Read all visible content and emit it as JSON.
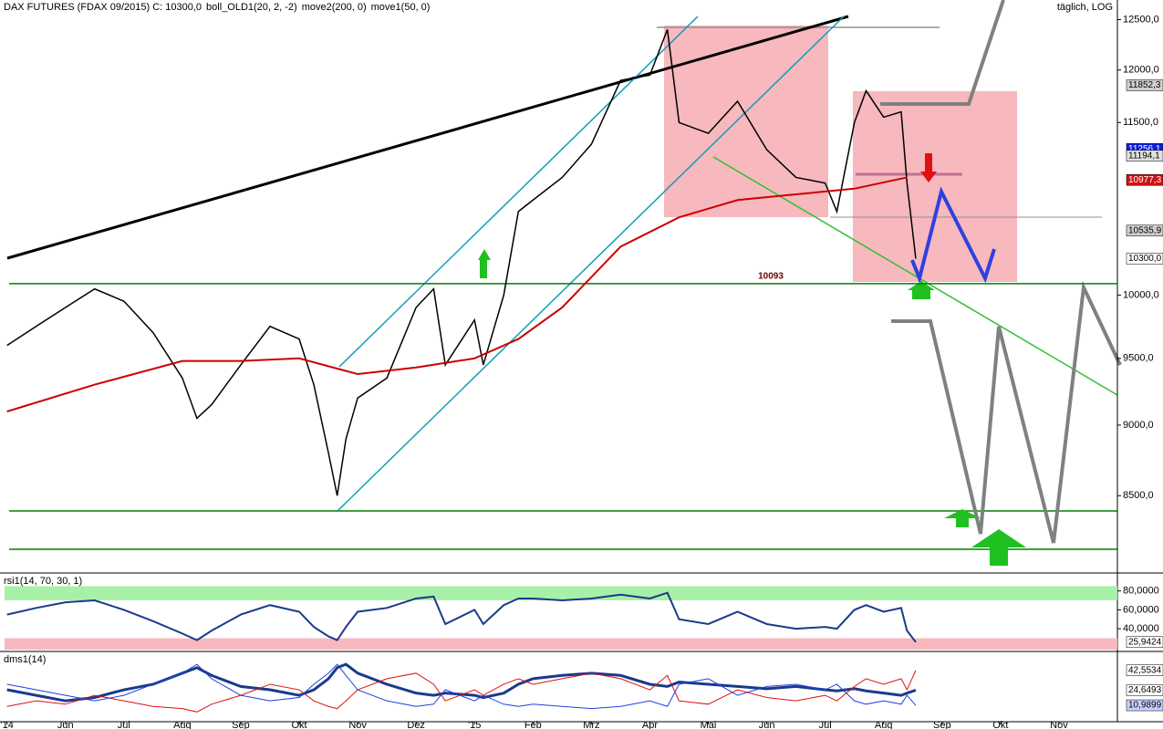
{
  "chart_data": [
    {
      "type": "line",
      "log_scale": true,
      "title_parts": [
        {
          "text": "DAX FUTURES (FDAX 09/2015) C: 10300,0",
          "color": "#000000"
        },
        {
          "text": "boll_OLD1(20, 2, -2)",
          "color": "#d08000"
        },
        {
          "text": "move2(200, 0)",
          "color": "#c00000"
        },
        {
          "text": "move1(50, 0)",
          "color": "#808080"
        }
      ],
      "period": "täglich, LOG",
      "xlim": [
        -0.12,
        19
      ],
      "ylim": [
        7990,
        12700
      ],
      "yticks": [
        {
          "value": 8500,
          "label": "8500,0"
        },
        {
          "value": 9000,
          "label": "9000,0"
        },
        {
          "value": 9500,
          "label": "9500,0"
        },
        {
          "value": 10000,
          "label": "10000,0"
        },
        {
          "value": 11500,
          "label": "11500,0"
        },
        {
          "value": 12000,
          "label": "12000,0"
        },
        {
          "value": 12500,
          "label": "12500,0"
        }
      ],
      "x": [
        0,
        0.5,
        1,
        1.5,
        2,
        2.5,
        3,
        3.25,
        3.5,
        4,
        4.5,
        5,
        5.25,
        5.5,
        5.65,
        5.8,
        6,
        6.5,
        7,
        7.3,
        7.5,
        8,
        8.15,
        8.5,
        8.75,
        9,
        9.5,
        10,
        10.5,
        11,
        11.3,
        11.5,
        12,
        12.5,
        13,
        13.5,
        14,
        14.2,
        14.5,
        14.7,
        15,
        15.3,
        15.4,
        15.55
      ],
      "series": [
        {
          "color": "#000000",
          "values": [
            9600,
            9750,
            9900,
            10050,
            9950,
            9700,
            9350,
            9050,
            9150,
            9450,
            9750,
            9650,
            9300,
            8800,
            8500,
            8900,
            9200,
            9350,
            9900,
            10050,
            9450,
            9800,
            9450,
            10000,
            10700,
            10800,
            11000,
            11300,
            11900,
            11950,
            12400,
            11500,
            11400,
            11700,
            11250,
            11000,
            10950,
            10700,
            11500,
            11800,
            11550,
            11600,
            10950,
            10300
          ]
        },
        {
          "color": "#cc0000",
          "x": [
            0,
            1.5,
            3,
            4,
            5,
            6,
            7,
            8,
            8.75,
            9.5,
            10.5,
            11.5,
            12.5,
            13.5,
            14.5,
            15.4
          ],
          "values": [
            9100,
            9300,
            9480,
            9480,
            9500,
            9380,
            9430,
            9500,
            9650,
            9900,
            10400,
            10650,
            10800,
            10850,
            10900,
            11000
          ]
        }
      ],
      "level": {
        "value": 10093,
        "label": "10093",
        "color": "#008000"
      },
      "tags": [
        {
          "value": 11852.3,
          "label": "11852,3",
          "bg": "#d0d0d0",
          "fg": "#000000"
        },
        {
          "value": 11256.1,
          "label": "11256,1",
          "bg": "#1020e0",
          "fg": "#ffffff"
        },
        {
          "value": 11194.1,
          "label": "11194,1",
          "bg": "#e0e0e0",
          "fg": "#000000"
        },
        {
          "value": 10977.3,
          "label": "10977,3",
          "bg": "#d01010",
          "fg": "#ffffff"
        },
        {
          "value": 10535.9,
          "label": "10535,9",
          "bg": "#d0d0d0",
          "fg": "#000000"
        },
        {
          "value": 10300.0,
          "label": "10300,0",
          "bg": "#ffffff",
          "fg": "#000000"
        }
      ]
    },
    {
      "type": "line",
      "title": "rsi1(14, 70, 30, 1)",
      "xlim": [
        -0.12,
        19
      ],
      "ylim": [
        18,
        97
      ],
      "yticks": [
        {
          "value": 40,
          "label": "40,0000"
        },
        {
          "value": 60,
          "label": "60,0000"
        },
        {
          "value": 80,
          "label": "80,0000"
        }
      ],
      "bands": [
        {
          "from": 70,
          "to": 85,
          "color": "#a8f0a8"
        },
        {
          "from": 18,
          "to": 30,
          "color": "#f8b8c0"
        }
      ],
      "x": [
        0,
        0.5,
        1,
        1.5,
        2,
        2.5,
        3,
        3.25,
        3.5,
        4,
        4.5,
        5,
        5.25,
        5.5,
        5.65,
        5.8,
        6,
        6.5,
        7,
        7.3,
        7.5,
        8,
        8.15,
        8.5,
        8.75,
        9,
        9.5,
        10,
        10.5,
        11,
        11.3,
        11.5,
        12,
        12.5,
        13,
        13.5,
        14,
        14.2,
        14.5,
        14.7,
        15,
        15.3,
        15.4,
        15.55
      ],
      "series": [
        {
          "color": "#1a3a8a",
          "values": [
            55,
            62,
            68,
            70,
            60,
            48,
            35,
            28,
            38,
            55,
            65,
            58,
            42,
            32,
            28,
            42,
            58,
            62,
            72,
            74,
            45,
            60,
            45,
            65,
            72,
            72,
            70,
            72,
            76,
            72,
            78,
            50,
            45,
            58,
            45,
            40,
            42,
            40,
            60,
            65,
            58,
            62,
            38,
            25.9424
          ]
        }
      ],
      "tags": [
        {
          "value": 25.9424,
          "label": "25,9424",
          "bg": "#ffffff",
          "fg": "#000000"
        }
      ]
    },
    {
      "type": "line",
      "title": "dms1(14)",
      "xlim": [
        -0.12,
        19
      ],
      "ylim": [
        -3,
        58
      ],
      "xticks": [
        {
          "value": 0,
          "label": "'14"
        },
        {
          "value": 1,
          "label": "Jun"
        },
        {
          "value": 2,
          "label": "Jul"
        },
        {
          "value": 3,
          "label": "Aug"
        },
        {
          "value": 4,
          "label": "Sep"
        },
        {
          "value": 5,
          "label": "Okt"
        },
        {
          "value": 6,
          "label": "Nov"
        },
        {
          "value": 7,
          "label": "Dez"
        },
        {
          "value": 8,
          "label": "'15"
        },
        {
          "value": 9,
          "label": "Feb"
        },
        {
          "value": 10,
          "label": "Mrz"
        },
        {
          "value": 11,
          "label": "Apr"
        },
        {
          "value": 12,
          "label": "Mai"
        },
        {
          "value": 13,
          "label": "Jun"
        },
        {
          "value": 14,
          "label": "Jul"
        },
        {
          "value": 15,
          "label": "Aug"
        },
        {
          "value": 16,
          "label": "Sep"
        },
        {
          "value": 17,
          "label": "Okt"
        },
        {
          "value": 18,
          "label": "Nov"
        }
      ],
      "x": [
        0,
        0.5,
        1,
        1.5,
        2,
        2.5,
        3,
        3.25,
        3.5,
        4,
        4.5,
        5,
        5.25,
        5.5,
        5.65,
        5.8,
        6,
        6.5,
        7,
        7.3,
        7.5,
        8,
        8.15,
        8.5,
        8.75,
        9,
        9.5,
        10,
        10.5,
        11,
        11.3,
        11.5,
        12,
        12.5,
        13,
        13.5,
        14,
        14.2,
        14.5,
        14.7,
        15,
        15.3,
        15.4,
        15.55
      ],
      "series": [
        {
          "color": "#1a3a8a",
          "width": 3,
          "values": [
            25,
            20,
            15,
            18,
            25,
            30,
            40,
            45,
            38,
            28,
            25,
            20,
            25,
            35,
            45,
            48,
            40,
            30,
            22,
            20,
            22,
            20,
            18,
            22,
            30,
            35,
            38,
            40,
            38,
            30,
            28,
            32,
            30,
            28,
            26,
            28,
            25,
            24,
            26,
            24,
            22,
            20,
            22,
            24.6493
          ]
        },
        {
          "color": "#e01010",
          "width": 1,
          "values": [
            10,
            15,
            12,
            20,
            15,
            10,
            8,
            5,
            12,
            20,
            30,
            25,
            15,
            10,
            8,
            15,
            25,
            35,
            40,
            30,
            15,
            25,
            20,
            30,
            35,
            30,
            35,
            40,
            35,
            25,
            38,
            15,
            12,
            25,
            18,
            15,
            20,
            15,
            28,
            35,
            30,
            35,
            25,
            42.5534
          ]
        },
        {
          "color": "#2040e0",
          "width": 1,
          "values": [
            30,
            25,
            20,
            15,
            20,
            30,
            40,
            48,
            35,
            20,
            15,
            18,
            30,
            40,
            48,
            38,
            25,
            15,
            10,
            12,
            25,
            15,
            20,
            12,
            10,
            12,
            10,
            8,
            10,
            15,
            10,
            30,
            35,
            20,
            28,
            30,
            25,
            30,
            15,
            12,
            15,
            12,
            20,
            10.9899
          ]
        }
      ],
      "tags": [
        {
          "value": 42.5534,
          "label": "42,5534",
          "bg": "#ffffff",
          "fg": "#000000"
        },
        {
          "value": 24.6493,
          "label": "24,6493",
          "bg": "#ffffff",
          "fg": "#000000"
        },
        {
          "value": 10.9899,
          "label": "10,9899",
          "bg": "#c8d0ff",
          "fg": "#000000"
        }
      ]
    }
  ]
}
